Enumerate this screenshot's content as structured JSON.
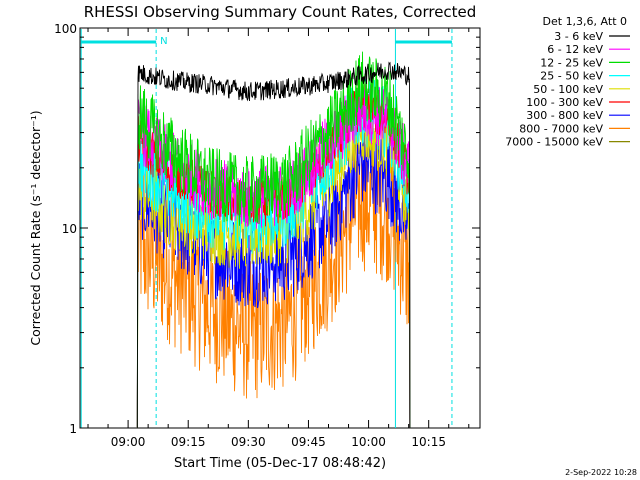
{
  "chart_data": {
    "type": "line",
    "title": "RHESSI Observing Summary Count Rates, Corrected",
    "xlabel": "Start Time (05-Dec-17 08:48:42)",
    "ylabel": "Corrected Count Rate (s⁻¹ detector⁻¹)",
    "yscale": "log",
    "ylim": [
      1,
      100
    ],
    "y_ticks": [
      1,
      10,
      100
    ],
    "xlim_minutes": [
      -12.0,
      87.8
    ],
    "x_ticks": [
      {
        "label": "09:00",
        "minutes": 0
      },
      {
        "label": "09:15",
        "minutes": 15
      },
      {
        "label": "09:30",
        "minutes": 30
      },
      {
        "label": "09:45",
        "minutes": 45
      },
      {
        "label": "10:00",
        "minutes": 60
      },
      {
        "label": "10:15",
        "minutes": 75
      }
    ],
    "grid": false,
    "legend_title": "Det 1,3,6, Att 0",
    "legend_position": "right",
    "data_start_minutes": 2.3,
    "data_end_minutes": 70.3,
    "series": [
      {
        "name": "3 - 6 keV",
        "color": "#000000",
        "x": [
          "09:02",
          "09:10",
          "09:20",
          "09:30",
          "09:40",
          "09:50",
          "09:58",
          "10:05",
          "10:10"
        ],
        "values": [
          60,
          55,
          52,
          48,
          50,
          53,
          58,
          62,
          58
        ]
      },
      {
        "name": "6 - 12 keV",
        "color": "#ff00ff",
        "x": [
          "09:02",
          "09:10",
          "09:20",
          "09:30",
          "09:40",
          "09:50",
          "09:58",
          "10:05",
          "10:10"
        ],
        "values": [
          32,
          22,
          16,
          14,
          15,
          26,
          40,
          34,
          20
        ]
      },
      {
        "name": "12 - 25 keV",
        "color": "#00dd00",
        "x": [
          "09:02",
          "09:10",
          "09:20",
          "09:30",
          "09:40",
          "09:50",
          "09:58",
          "10:05",
          "10:10"
        ],
        "values": [
          38,
          25,
          17,
          15,
          17,
          30,
          52,
          44,
          22
        ]
      },
      {
        "name": "25 - 50 keV",
        "color": "#00ffff",
        "x": [
          "09:02",
          "09:10",
          "09:20",
          "09:30",
          "09:40",
          "09:50",
          "09:58",
          "10:05",
          "10:10"
        ],
        "values": [
          22,
          16,
          12,
          11,
          12,
          22,
          40,
          33,
          16
        ]
      },
      {
        "name": "50 - 100 keV",
        "color": "#dddd00",
        "x": [
          "09:02",
          "09:10",
          "09:20",
          "09:30",
          "09:40",
          "09:50",
          "09:58",
          "10:05",
          "10:10"
        ],
        "values": [
          17,
          12,
          10,
          9,
          10,
          17,
          32,
          27,
          13
        ]
      },
      {
        "name": "100 - 300 keV",
        "color": "#ff0000",
        "x": [
          "09:02",
          "09:10",
          "09:20",
          "09:30",
          "09:40",
          "09:50",
          "09:58",
          "10:05",
          "10:10"
        ],
        "values": [
          28,
          20,
          15,
          13,
          14,
          24,
          42,
          35,
          18
        ]
      },
      {
        "name": "300 - 800 keV",
        "color": "#0000ff",
        "x": [
          "09:02",
          "09:10",
          "09:20",
          "09:30",
          "09:40",
          "09:50",
          "09:58",
          "10:05",
          "10:10"
        ],
        "values": [
          15,
          11,
          7.5,
          6.5,
          7,
          11,
          21,
          18,
          10
        ]
      },
      {
        "name": "800 - 7000 keV",
        "color": "#ff8000",
        "x": [
          "09:02",
          "09:10",
          "09:20",
          "09:30",
          "09:40",
          "09:50",
          "09:58",
          "10:05",
          "10:10"
        ],
        "values": [
          8.5,
          6,
          4,
          3,
          3.5,
          7,
          14,
          12,
          6
        ]
      },
      {
        "name": "7000 - 15000 keV",
        "color": "#888800",
        "x": [],
        "values": []
      }
    ],
    "annotations": [
      {
        "text": "N",
        "color": "#00e0e0"
      }
    ],
    "footer_timestamp": "2-Sep-2022 10:28"
  }
}
